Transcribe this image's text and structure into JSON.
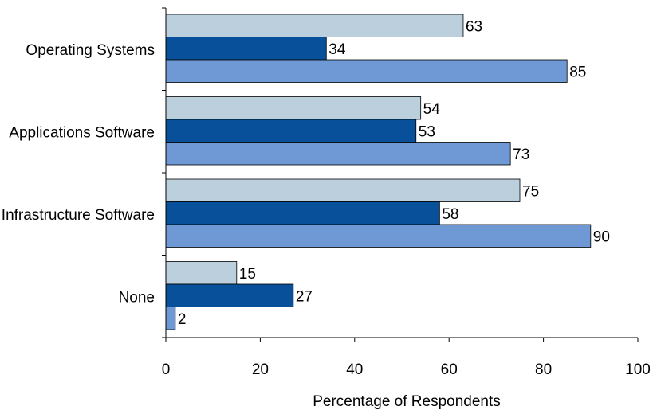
{
  "chart_data": {
    "type": "bar",
    "orientation": "horizontal",
    "categories": [
      "Operating Systems",
      "Applications Software",
      "Infrastructure Software",
      "None"
    ],
    "series": [
      {
        "values": [
          63,
          54,
          75,
          15
        ],
        "color": "#bccfdc"
      },
      {
        "values": [
          34,
          53,
          58,
          27
        ],
        "color": "#08509a"
      },
      {
        "values": [
          85,
          73,
          90,
          2
        ],
        "color": "#6f99d4"
      }
    ],
    "xlabel": "Percentage of Respondents",
    "ylabel": "",
    "xlim": [
      0,
      100
    ],
    "xticks": [
      "0",
      "20",
      "40",
      "60",
      "80",
      "100"
    ],
    "grid": false,
    "legend": "none",
    "data_labels": true
  }
}
